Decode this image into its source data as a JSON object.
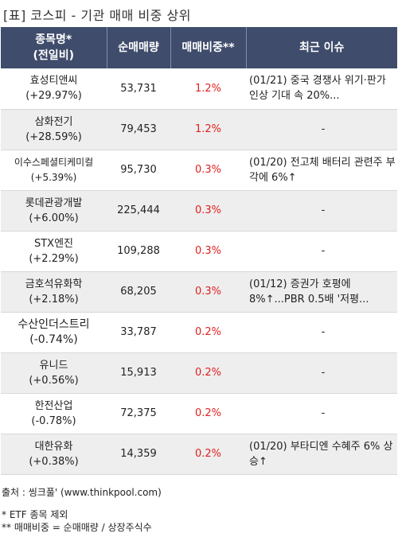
{
  "title": "[표] 코스피 - 기관 매매 비중 상위",
  "headers": {
    "name_line1": "종목명*",
    "name_line2": "(전일비)",
    "volume": "순매매량",
    "ratio": "매매비중**",
    "issue": "최근 이슈"
  },
  "rows": [
    {
      "name": "효성티앤씨",
      "change": "(+29.97%)",
      "volume": "53,731",
      "ratio": "1.2%",
      "issue": "(01/21) 중국 경쟁사 위기·판가 인상 기대 속 20%..."
    },
    {
      "name": "삼화전기",
      "change": "(+28.59%)",
      "volume": "79,453",
      "ratio": "1.2%",
      "issue": "-"
    },
    {
      "name": "이수스페셜티케미컬",
      "change": "(+5.39%)",
      "volume": "95,730",
      "ratio": "0.3%",
      "issue": "(01/20) 전고체 배터리 관련주 부각에 6%↑"
    },
    {
      "name": "롯데관광개발",
      "change": "(+6.00%)",
      "volume": "225,444",
      "ratio": "0.3%",
      "issue": "-"
    },
    {
      "name": "STX엔진",
      "change": "(+2.29%)",
      "volume": "109,288",
      "ratio": "0.3%",
      "issue": "-"
    },
    {
      "name": "금호석유화학",
      "change": "(+2.18%)",
      "volume": "68,205",
      "ratio": "0.3%",
      "issue": "(01/12) 증권가 호평에 8%↑...PBR 0.5배 '저평..."
    },
    {
      "name": "수산인더스트리",
      "change": "(-0.74%)",
      "volume": "33,787",
      "ratio": "0.2%",
      "issue": "-"
    },
    {
      "name": "유니드",
      "change": "(+0.56%)",
      "volume": "15,913",
      "ratio": "0.2%",
      "issue": "-"
    },
    {
      "name": "한전산업",
      "change": "(-0.78%)",
      "volume": "72,375",
      "ratio": "0.2%",
      "issue": "-"
    },
    {
      "name": "대한유화",
      "change": "(+0.38%)",
      "volume": "14,359",
      "ratio": "0.2%",
      "issue": "(01/20) 부타디엔 수혜주 6% 상승↑"
    }
  ],
  "footer": {
    "source": "출처 : 씽크풀' (www.thinkpool.com)",
    "note1": "* ETF 종목 제외",
    "note2": "** 매매비중 = 순매매량 / 상장주식수"
  }
}
